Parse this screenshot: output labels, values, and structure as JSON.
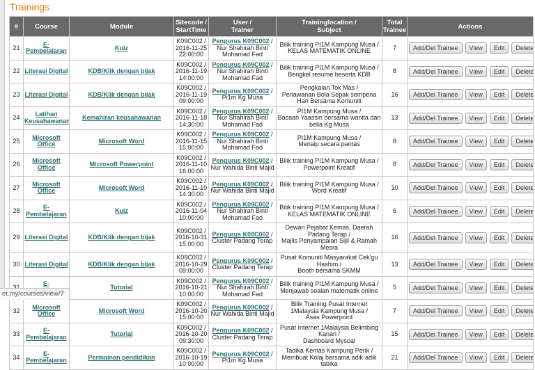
{
  "page": {
    "title": "Trainings"
  },
  "status_bar": {
    "url_preview": "et.my/courses/view/7"
  },
  "colors": {
    "title_orange": "#ef7c08",
    "header_bg": "#696969",
    "header_text": "#ffffff",
    "link_teal": "#2e6e6e",
    "cell_border": "#c6c6c6"
  },
  "table": {
    "columns": [
      {
        "key": "num",
        "lines": [
          "#"
        ]
      },
      {
        "key": "course",
        "lines": [
          "Course"
        ]
      },
      {
        "key": "module",
        "lines": [
          "Module"
        ]
      },
      {
        "key": "sitecode",
        "lines": [
          "Sitecode /",
          "StartTime"
        ]
      },
      {
        "key": "trainer",
        "lines": [
          "User /",
          "Trainer"
        ]
      },
      {
        "key": "location",
        "lines": [
          "Traininglocation /",
          "Subject"
        ]
      },
      {
        "key": "total",
        "lines": [
          "Total",
          "Trainee"
        ]
      },
      {
        "key": "actions",
        "lines": [
          "Actions"
        ]
      }
    ],
    "actions": [
      "Add/Del Trainee",
      "View",
      "Edit",
      "Delete"
    ],
    "trainer_separator": " /",
    "rows": [
      {
        "num": "21",
        "course": "E-Pembelajaran",
        "module": "Kuiz",
        "sitecode": "K09C002 /",
        "date": "2016-11-25",
        "time": "22:00:00",
        "trainer_link": "Pengurus K09C002",
        "trainer_name": "Nur Shahirah Binti Mohamad Fad",
        "location": "Bilik training PI1M Kampung Musa /",
        "subject": "KELAS MATEMATIK ONLINE",
        "total": "7"
      },
      {
        "num": "22",
        "course": "Literasi Digital",
        "module": "KDB/Klik dengan bijak",
        "sitecode": "K09C002 /",
        "date": "2016-11-19",
        "time": "14:00:00",
        "trainer_link": "Pengurus K09C002",
        "trainer_name": "Nur Shahirah Binti Mohamad Fad",
        "location": "Bilik training PI1M Kampung Musa /",
        "subject": "Bengkel resume beserta KDB",
        "total": "8"
      },
      {
        "num": "23",
        "course": "Literasi Digital",
        "module": "KDB/Klik dengan bijak",
        "sitecode": "K09C002 /",
        "date": "2016-11-19",
        "time": "09:00:00",
        "trainer_link": "Pengurus K09C002",
        "trainer_name": "Pi1m Kg Musa",
        "location": "Pengkalan Tok Mas /",
        "subject": "Perlawanan Bola Sepak sempena Hari Bersama Komuniti",
        "total": "16"
      },
      {
        "num": "24",
        "course": "Latihan Keusahawanan",
        "module": "Kemahiran keusahawanan",
        "sitecode": "K09C002 /",
        "date": "2016-11-18",
        "time": "14:30:00",
        "trainer_link": "Pengurus K09C002",
        "trainer_name": "Nur Shahirah Binti Mohamad Fad",
        "location": "PI1M Kampung Musa /",
        "subject": "Bacaan Yaassin bersama wanita dan belia Kg Musa",
        "total": "13"
      },
      {
        "num": "25",
        "course": "Microsoft Office",
        "module": "Microsoft Word",
        "sitecode": "K09C002 /",
        "date": "2016-11-15",
        "time": "15:00:00",
        "trainer_link": "Pengurus K09C002",
        "trainer_name": "Nur Shahirah Binti Mohamad Fad",
        "location": "PI1M Kampung Musa /",
        "subject": "Menaip secara pantas",
        "total": "8"
      },
      {
        "num": "26",
        "course": "Microsoft Office",
        "module": "Microsoft Powerpoint",
        "sitecode": "K09C002 /",
        "date": "2016-11-10",
        "time": "16:00:00",
        "trainer_link": "Pengurus K09C002",
        "trainer_name": "Nur Wahida Binti Majid",
        "location": "Bilik training PI1M Kampung Musa /",
        "subject": "Powerpoint Kreatif",
        "total": "8"
      },
      {
        "num": "27",
        "course": "Microsoft Office",
        "module": "Microsoft Word",
        "sitecode": "K09C002 /",
        "date": "2016-11-10",
        "time": "14:30:00",
        "trainer_link": "Pengurus K09C002",
        "trainer_name": "Nur Wahida Binti Majid",
        "location": "Bilik training PI1M Kampung Musa /",
        "subject": "Word Kreatif",
        "total": "10"
      },
      {
        "num": "28",
        "course": "E-Pembelajaran",
        "module": "Kuiz",
        "sitecode": "K09C002 /",
        "date": "2016-11-04",
        "time": "10:00:00",
        "trainer_link": "Pengurus K09C002",
        "trainer_name": "Nur Shahirah Binti Mohamad Fad",
        "location": "Bilik training PI1M Kampung Musa /",
        "subject": "KELAS MATEMATIK ONLINE",
        "total": "6"
      },
      {
        "num": "29",
        "course": "Literasi Digital",
        "module": "KDB/Klik dengan bijak",
        "sitecode": "K09C002 /",
        "date": "2016-10-31",
        "time": "15:00:00",
        "trainer_link": "Pengurus K09C002",
        "trainer_name": "Cluster Padang Terap",
        "location": "Dewan Pejabat Kemas, Daerah Padang Terap /",
        "subject": "Majlis Penyampaian Sijil & Ramah Mesra",
        "total": "16"
      },
      {
        "num": "30",
        "course": "Literasi Digital",
        "module": "KDB/Klik dengan bijak",
        "sitecode": "K09C002 /",
        "date": "2016-10-29",
        "time": "09:00:00",
        "trainer_link": "Pengurus K09C002",
        "trainer_name": "Cluster Padang Terap",
        "location": "Pusat Komuniti Masyarakat Cek'gu Hashim /",
        "subject": "Booth bersama SKMM",
        "total": "13"
      },
      {
        "num": "31",
        "course": "E-Pembelajaran",
        "module": "Tutorial",
        "sitecode": "K09C002 /",
        "date": "2016-10-21",
        "time": "10:00:00",
        "trainer_link": "Pengurus K09C002",
        "trainer_name": "Nur Shahirah Binti Mohamad Fad",
        "location": "Bilik training PI1M Kampung Musa /",
        "subject": "Menjawab soalan matematik online",
        "total": "5"
      },
      {
        "num": "32",
        "course": "Microsoft Office",
        "module": "Microsoft Word",
        "sitecode": "K09C002 /",
        "date": "2016-10-20",
        "time": "15:00:00",
        "trainer_link": "Pengurus K09C002",
        "trainer_name": "Nur Wahida Binti Majid",
        "location": "Bilik Training Pusat Internet 1Malaysia Kampung Musa /",
        "subject": "Asas Powerpoint",
        "total": "7"
      },
      {
        "num": "33",
        "course": "E-Pembelajaran",
        "module": "Tutorial",
        "sitecode": "K09C002 /",
        "date": "2016-10-20",
        "time": "09:30:00",
        "trainer_link": "Pengurus K09C002",
        "trainer_name": "Cluster Padang Terap",
        "location": "Pusat Internet 1Malaysia Belimbing Kanan /",
        "subject": "Dashboard Mysoal",
        "total": "15"
      },
      {
        "num": "34",
        "course": "E-Pembelajaran",
        "module": "Permainan pendidikan",
        "sitecode": "K09C002 /",
        "date": "2016-10-19",
        "time": "10:00:00",
        "trainer_link": "Pengurus K09C002",
        "trainer_name": "Pi1m Kg Musa",
        "location": "Tadika Kemas Kampung Perik /",
        "subject": "Membuat Kolaj bersama adik-adik tabika",
        "total": "21"
      }
    ]
  }
}
